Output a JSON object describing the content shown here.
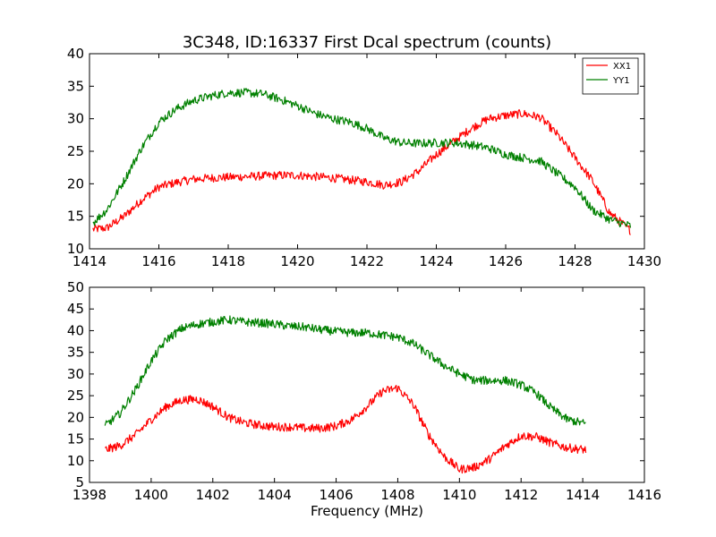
{
  "chart_data": [
    {
      "type": "line",
      "title": "3C348, ID:16337 First Dcal spectrum (counts)",
      "xlabel": "",
      "ylabel": "",
      "xlim": [
        1414,
        1430
      ],
      "ylim": [
        10,
        40
      ],
      "xticks": [
        1414,
        1416,
        1418,
        1420,
        1422,
        1424,
        1426,
        1428,
        1430
      ],
      "yticks": [
        10,
        15,
        20,
        25,
        30,
        35,
        40
      ],
      "legend": "top-right",
      "series": [
        {
          "name": "XX1",
          "color": "#ff0000",
          "x": [
            1414.1,
            1414.5,
            1415.0,
            1415.5,
            1416.0,
            1416.5,
            1417.0,
            1417.5,
            1418.0,
            1418.5,
            1419.0,
            1419.5,
            1420.0,
            1420.5,
            1421.0,
            1421.5,
            1422.0,
            1422.5,
            1423.0,
            1423.5,
            1424.0,
            1424.5,
            1425.0,
            1425.5,
            1426.0,
            1426.5,
            1427.0,
            1427.5,
            1428.0,
            1428.5,
            1429.0,
            1429.6
          ],
          "y": [
            13.0,
            13.2,
            15.0,
            17.5,
            19.5,
            20.2,
            20.7,
            20.9,
            21.0,
            21.1,
            21.2,
            21.3,
            21.3,
            21.1,
            20.9,
            20.6,
            20.3,
            19.8,
            20.3,
            22.0,
            24.5,
            26.5,
            28.5,
            30.0,
            30.5,
            30.8,
            30.2,
            27.5,
            24.0,
            20.5,
            15.5,
            12.8
          ]
        },
        {
          "name": "YY1",
          "color": "#008000",
          "x": [
            1414.1,
            1414.5,
            1415.0,
            1415.5,
            1416.0,
            1416.5,
            1417.0,
            1417.5,
            1418.0,
            1418.5,
            1419.0,
            1419.5,
            1420.0,
            1420.5,
            1421.0,
            1421.5,
            1422.0,
            1422.5,
            1423.0,
            1423.5,
            1424.0,
            1424.5,
            1425.0,
            1425.5,
            1426.0,
            1426.5,
            1427.0,
            1427.5,
            1428.0,
            1428.5,
            1429.0,
            1429.6
          ],
          "y": [
            14.0,
            16.0,
            20.5,
            25.5,
            29.5,
            31.5,
            32.8,
            33.5,
            34.0,
            34.0,
            33.8,
            33.0,
            32.0,
            30.8,
            30.0,
            29.5,
            28.5,
            27.0,
            26.3,
            26.2,
            26.3,
            26.3,
            26.0,
            25.5,
            24.5,
            24.0,
            23.5,
            21.5,
            19.5,
            16.0,
            14.5,
            13.5
          ]
        }
      ]
    },
    {
      "type": "line",
      "title": "",
      "xlabel": "Frequency (MHz)",
      "ylabel": "",
      "xlim": [
        1398,
        1416
      ],
      "ylim": [
        5,
        50
      ],
      "xticks": [
        1398,
        1400,
        1402,
        1404,
        1406,
        1408,
        1410,
        1412,
        1414,
        1416
      ],
      "yticks": [
        5,
        10,
        15,
        20,
        25,
        30,
        35,
        40,
        45,
        50
      ],
      "legend": "none",
      "series": [
        {
          "color": "#ff0000",
          "x": [
            1398.5,
            1399.0,
            1399.5,
            1400.0,
            1400.5,
            1401.0,
            1401.5,
            1402.0,
            1402.5,
            1403.0,
            1403.5,
            1404.0,
            1404.5,
            1405.0,
            1405.5,
            1406.0,
            1406.5,
            1407.0,
            1407.5,
            1408.0,
            1408.5,
            1409.0,
            1409.5,
            1410.0,
            1410.5,
            1411.0,
            1411.5,
            1412.0,
            1412.5,
            1413.0,
            1413.5,
            1414.1
          ],
          "y": [
            12.5,
            13.5,
            16.0,
            19.5,
            22.5,
            24.0,
            24.2,
            22.5,
            20.0,
            18.8,
            18.2,
            17.8,
            17.8,
            17.5,
            17.5,
            18.0,
            19.5,
            22.5,
            26.0,
            26.8,
            23.0,
            16.0,
            11.0,
            8.0,
            8.5,
            10.5,
            13.5,
            15.8,
            15.5,
            14.0,
            13.0,
            12.5
          ]
        },
        {
          "color": "#008000",
          "x": [
            1398.5,
            1399.0,
            1399.5,
            1400.0,
            1400.5,
            1401.0,
            1401.5,
            1402.0,
            1402.5,
            1403.0,
            1403.5,
            1404.0,
            1404.5,
            1405.0,
            1405.5,
            1406.0,
            1406.5,
            1407.0,
            1407.5,
            1408.0,
            1408.5,
            1409.0,
            1409.5,
            1410.0,
            1410.5,
            1411.0,
            1411.5,
            1412.0,
            1412.5,
            1413.0,
            1413.5,
            1414.1
          ],
          "y": [
            18.0,
            21.0,
            26.5,
            33.0,
            38.0,
            40.5,
            41.5,
            42.0,
            42.5,
            42.0,
            41.8,
            41.5,
            41.0,
            40.8,
            40.2,
            39.8,
            39.5,
            39.5,
            39.0,
            38.5,
            37.0,
            34.5,
            32.0,
            30.0,
            28.5,
            28.5,
            28.5,
            27.5,
            25.5,
            22.0,
            19.5,
            18.5
          ]
        }
      ]
    }
  ]
}
